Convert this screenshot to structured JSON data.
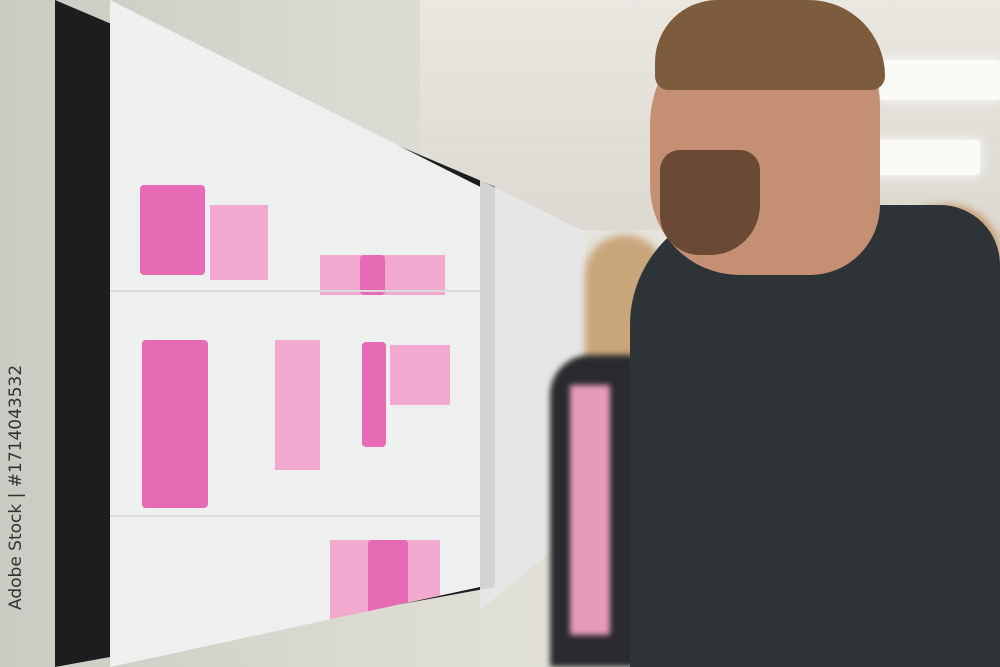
{
  "watermark": {
    "text": "Adobe Stock | #1714043532"
  },
  "colors": {
    "accent_pink": "#e66bb4",
    "light_pink": "#f1a9cf",
    "sweater": "#2e3337"
  }
}
